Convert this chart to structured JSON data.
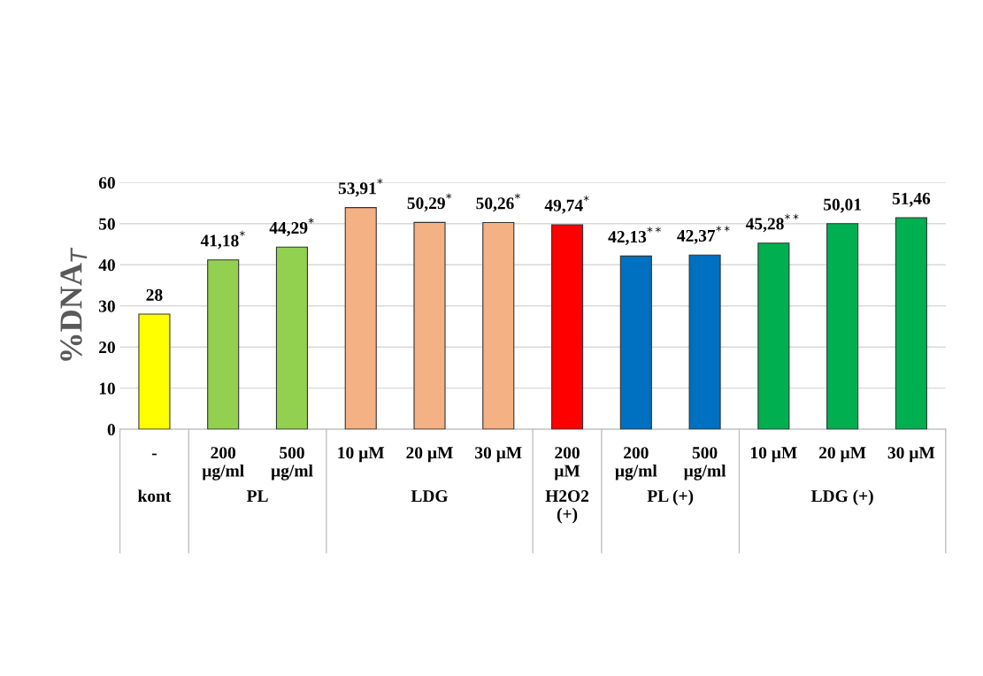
{
  "chart_data": {
    "type": "bar",
    "ylabel": "%DNA$_{T}$",
    "categories": [
      "-",
      "200\nµg/ml",
      "500\nµg/ml",
      "10 µM",
      "20 µM",
      "30 µM",
      "200\nµM",
      "200\nµg/ml",
      "500\nµg/ml",
      "10 µM",
      "20 µM",
      "30 µM"
    ],
    "values": [
      28,
      41.18,
      44.29,
      53.91,
      50.29,
      50.26,
      49.74,
      42.13,
      42.37,
      45.28,
      50.01,
      51.46
    ],
    "colors": [
      "#ffff00",
      "#92d050",
      "#92d050",
      "#f4b183",
      "#f4b183",
      "#f4b183",
      "#ff0000",
      "#0070c0",
      "#0070c0",
      "#00b050",
      "#00b050",
      "#00b050"
    ],
    "value_labels": [
      "28",
      "41,18$^{*}$",
      "44,29$^{*}$",
      "53,91$^{*}$",
      "50,29$^{*}$",
      "50,26$^{*}$",
      "49,74$^{*}$",
      "42,13$^{**}$",
      "42,37$^{**}$",
      "45,28$^{**}$",
      "50,01",
      "51,46"
    ],
    "annotations": [
      "kont",
      "PL",
      "LDG",
      "H2O2\n(+)",
      "PL (+)",
      "LDG (+)"
    ],
    "ylim": [
      0,
      60
    ],
    "yticks": [
      0,
      10,
      20,
      30,
      40,
      50,
      60
    ],
    "grid": "y"
  }
}
